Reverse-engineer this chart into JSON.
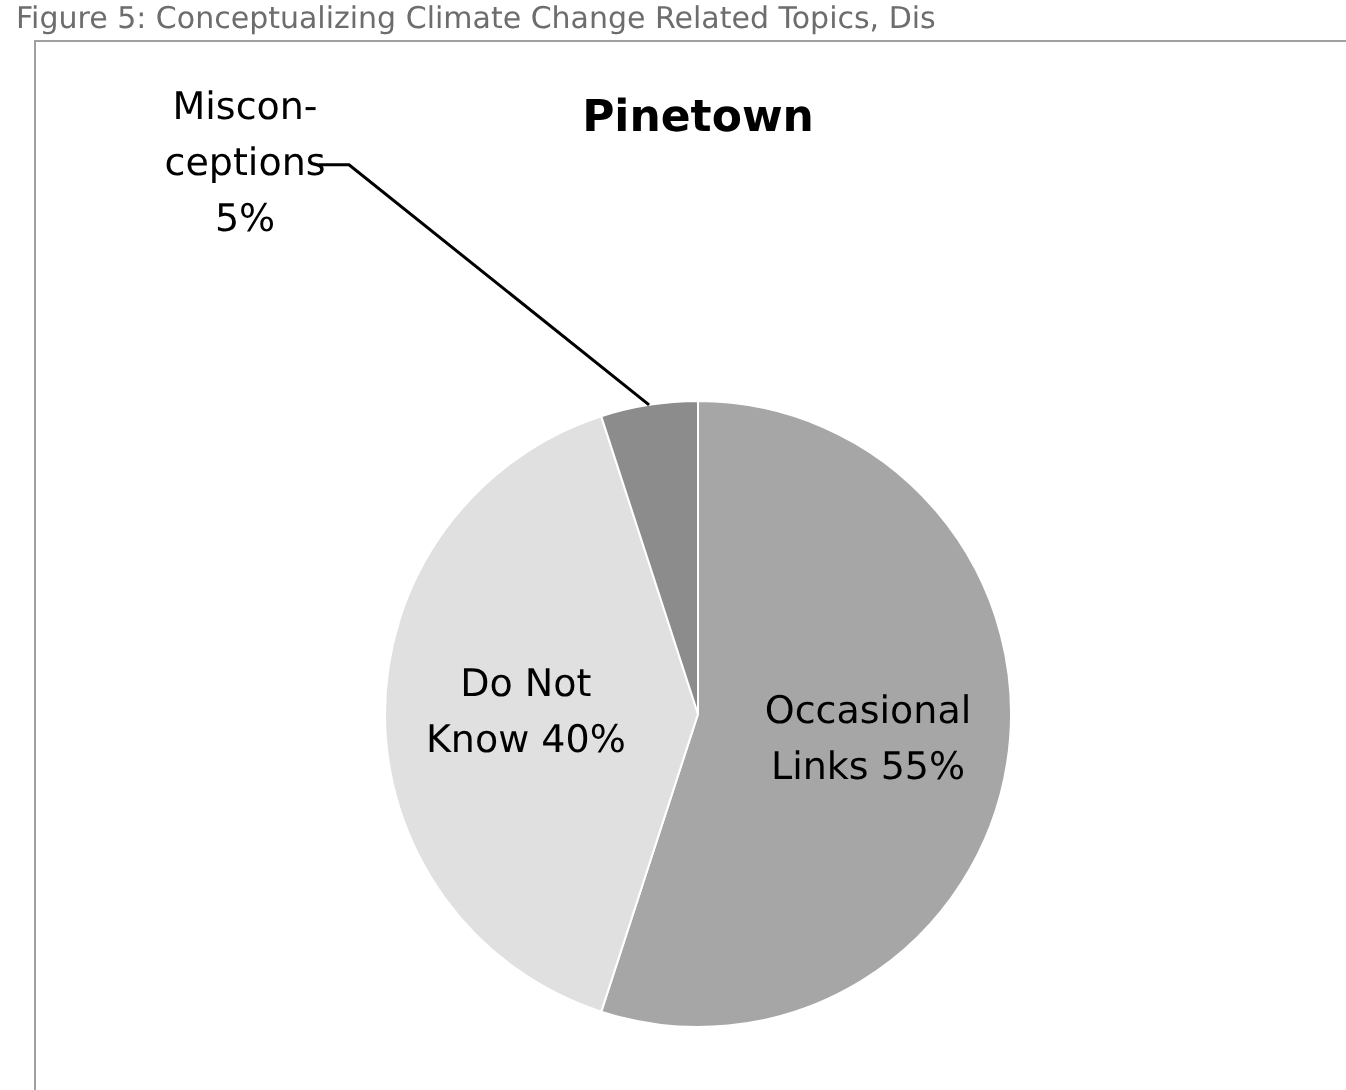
{
  "chart_data": {
    "type": "pie",
    "title": "Pinetown",
    "annotations": [
      "Figure 5: Conceptualizing Climate Change Related Topics, Dis"
    ],
    "categories": [
      "Occasional\nLinks",
      "Do Not\nKnow",
      "Miscon-\nceptions"
    ],
    "values": [
      55,
      40,
      5
    ],
    "value_labels": [
      "55%",
      "40%",
      "5%"
    ],
    "colors": [
      "#a6a6a6",
      "#e0e0e0",
      "#8c8c8c"
    ],
    "legend": false
  }
}
